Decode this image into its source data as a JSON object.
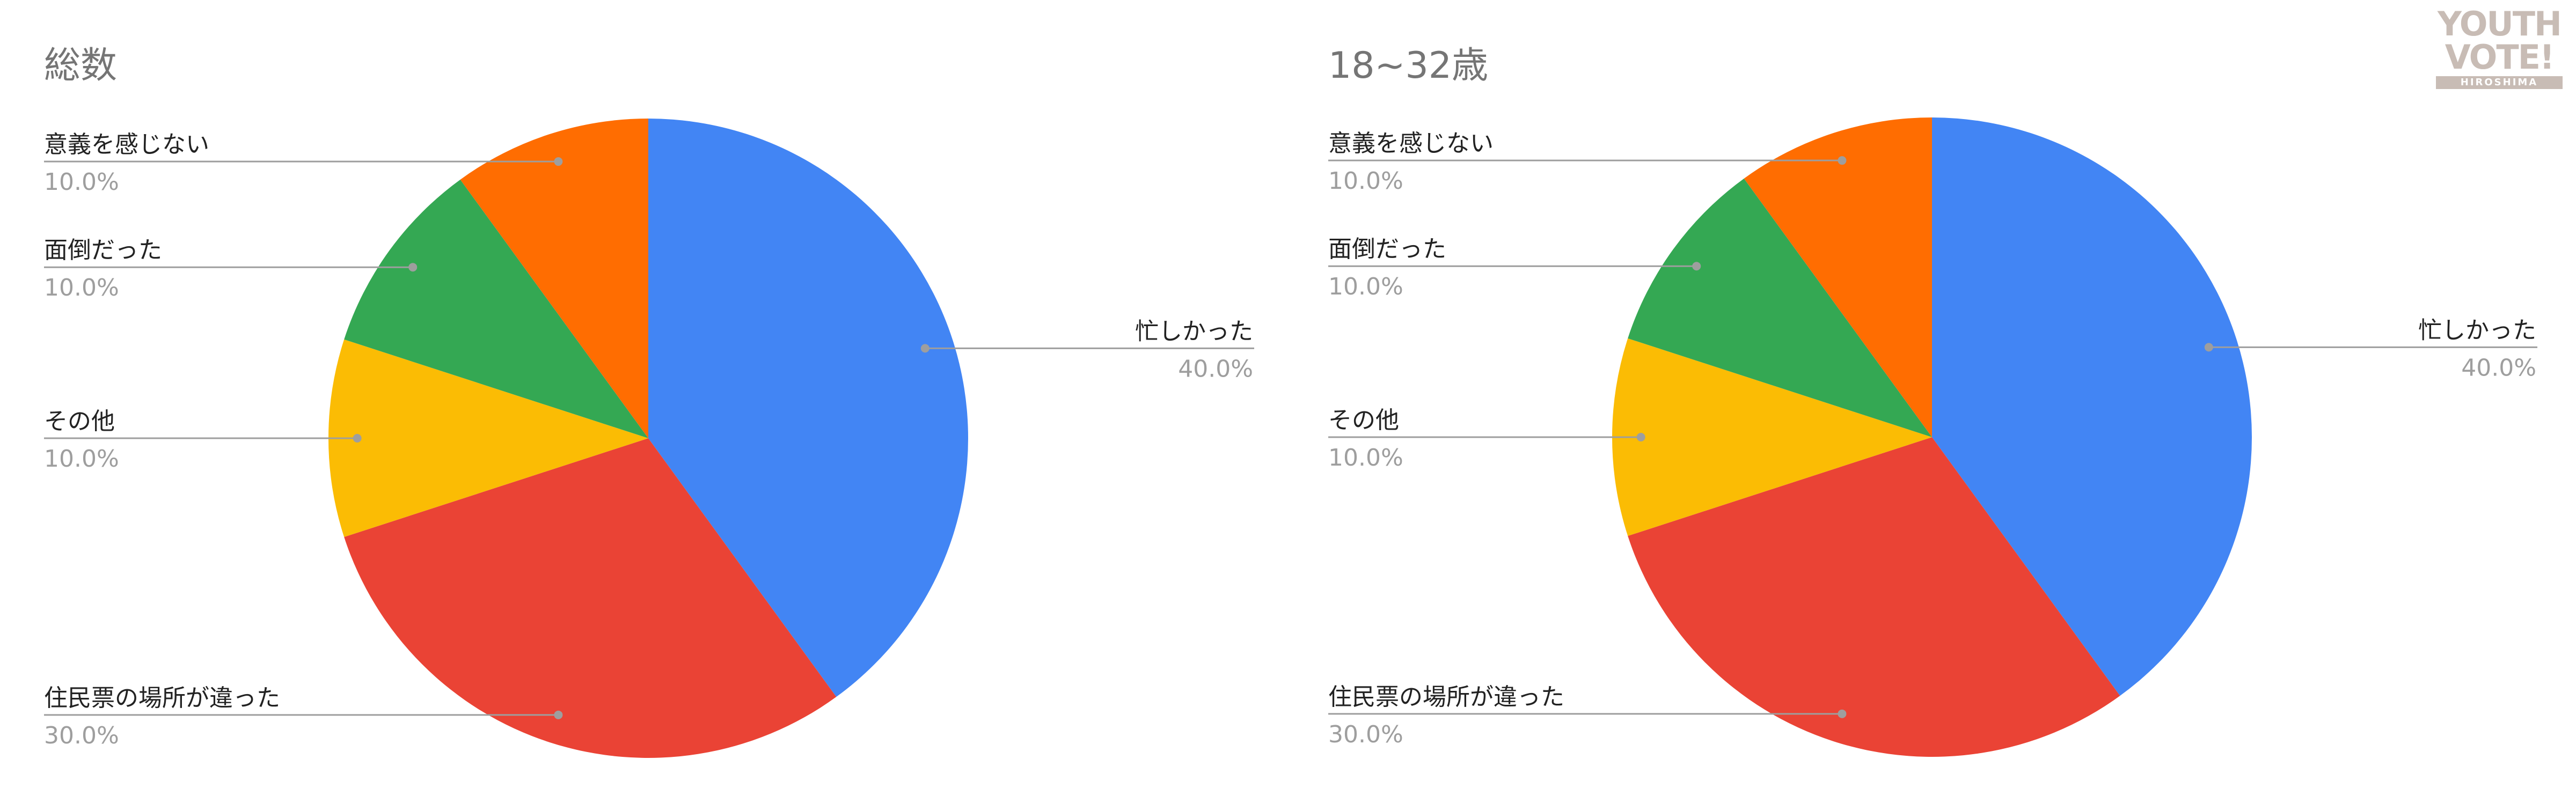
{
  "chart_data": [
    {
      "type": "pie",
      "title": "総数",
      "colors": [
        "#4285f4",
        "#ea4335",
        "#fbbc04",
        "#34a853",
        "#ff6d01"
      ],
      "slices": [
        {
          "label": "忙しかった",
          "value": 40.0,
          "value_label": "40.0%"
        },
        {
          "label": "住民票の場所が違った",
          "value": 30.0,
          "value_label": "30.0%"
        },
        {
          "label": "その他",
          "value": 10.0,
          "value_label": "10.0%"
        },
        {
          "label": "面倒だった",
          "value": 10.0,
          "value_label": "10.0%"
        },
        {
          "label": "意義を感じない",
          "value": 10.0,
          "value_label": "10.0%"
        }
      ]
    },
    {
      "type": "pie",
      "title": "18~32歳",
      "colors": [
        "#4285f4",
        "#ea4335",
        "#fbbc04",
        "#34a853",
        "#ff6d01"
      ],
      "slices": [
        {
          "label": "忙しかった",
          "value": 40.0,
          "value_label": "40.0%"
        },
        {
          "label": "住民票の場所が違った",
          "value": 30.0,
          "value_label": "30.0%"
        },
        {
          "label": "その他",
          "value": 10.0,
          "value_label": "10.0%"
        },
        {
          "label": "面倒だった",
          "value": 10.0,
          "value_label": "10.0%"
        },
        {
          "label": "意義を感じない",
          "value": 10.0,
          "value_label": "10.0%"
        }
      ]
    }
  ],
  "logo": {
    "line1": "YOUTH",
    "line2": "VOTE!",
    "line3": "HIROSHIMA"
  }
}
